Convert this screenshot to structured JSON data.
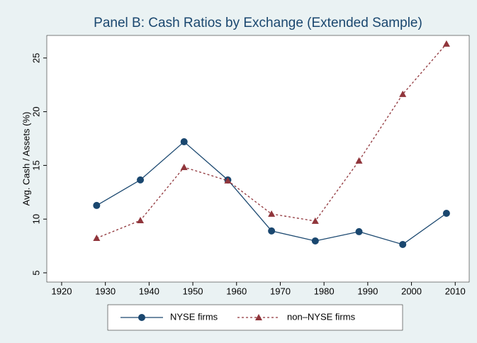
{
  "chart_data": {
    "type": "line",
    "title": "Panel B: Cash Ratios by Exchange (Extended Sample)",
    "y_label": "Avg. Cash / Assets (%)",
    "x": [
      1928,
      1938,
      1948,
      1958,
      1968,
      1978,
      1988,
      1998,
      2008
    ],
    "series": [
      {
        "name": "NYSE firms",
        "color": "#1a476f",
        "line_style": "solid",
        "marker": "circle",
        "values": [
          11.27,
          13.65,
          17.2,
          13.65,
          8.9,
          7.97,
          8.83,
          7.64,
          10.54
        ]
      },
      {
        "name": "non–NYSE firms",
        "color": "#90353b",
        "line_style": "dashed",
        "marker": "triangle",
        "values": [
          8.23,
          9.88,
          14.83,
          13.58,
          10.48,
          9.82,
          15.43,
          21.63,
          26.32
        ]
      }
    ],
    "xlim": [
      1916.6,
      2013.2
    ],
    "xticks": [
      1920,
      1930,
      1940,
      1950,
      1960,
      1970,
      1980,
      1990,
      2000,
      2010
    ],
    "ylim": [
      4.14,
      27.1
    ],
    "yticks": [
      5,
      10,
      15,
      20,
      25
    ],
    "grid": false,
    "legend": "bottom"
  }
}
